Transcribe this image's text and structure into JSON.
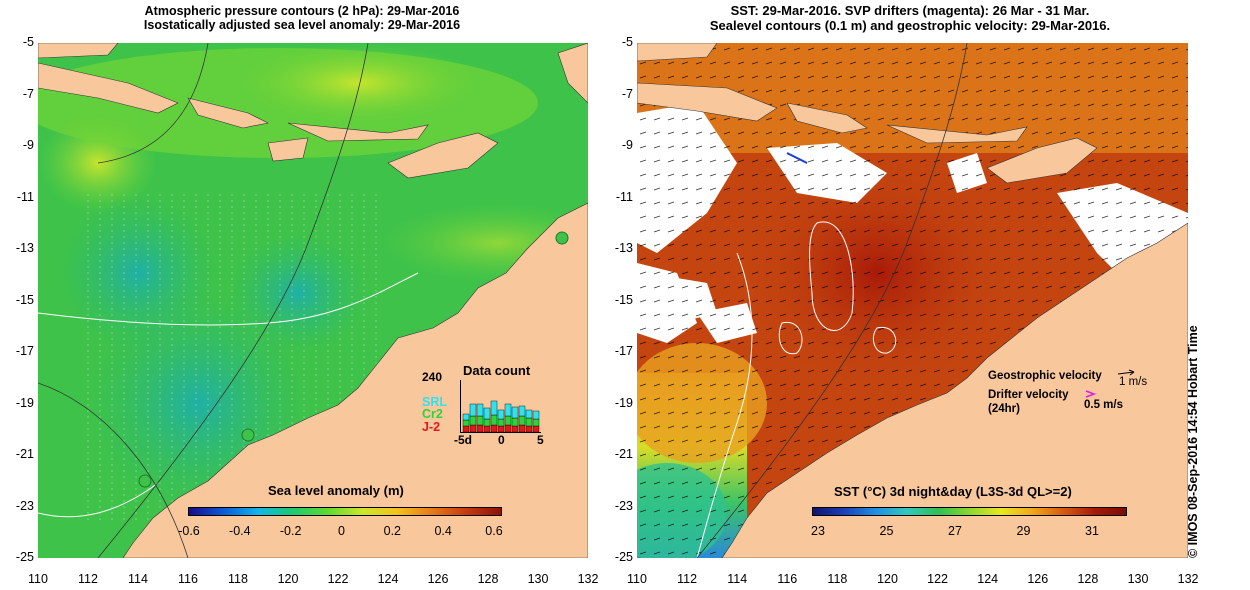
{
  "left_panel": {
    "title_line1": "Atmospheric pressure contours (2 hPa): 29-Mar-2016",
    "title_line2": "Isostatically adjusted sea level anomaly: 29-Mar-2016",
    "colorbar_label": "Sea level anomaly (m)",
    "colorbar_ticks": [
      "-0.6",
      "-0.4",
      "-0.2",
      "0",
      "0.2",
      "0.4",
      "0.6"
    ],
    "colorbar_colors": [
      "#1a0a8c",
      "#0b5bd8",
      "#12b6e8",
      "#1ec96e",
      "#5edb2e",
      "#cbe82a",
      "#f3c21c",
      "#e87a18",
      "#c53a10",
      "#8e1208"
    ],
    "data_count": {
      "title": "Data count",
      "ymax_label": "240",
      "series": [
        {
          "name": "SRL",
          "color": "#33e0ee"
        },
        {
          "name": "Cr2",
          "color": "#2bd43a"
        },
        {
          "name": "J-2",
          "color": "#e01a1a"
        }
      ],
      "xticks": [
        "-5d",
        "0",
        "5"
      ]
    }
  },
  "right_panel": {
    "title_line1": "SST: 29-Mar-2016. SVP drifters (magenta): 26 Mar - 31 Mar.",
    "title_line2": "Sealevel contours (0.1 m) and geostrophic velocity: 29-Mar-2016.",
    "colorbar_label": "SST (°C) 3d night&day (L3S-3d QL>=2)",
    "colorbar_ticks": [
      "23",
      "25",
      "27",
      "29",
      "31"
    ],
    "colorbar_colors": [
      "#14136e",
      "#1c3fb8",
      "#2090e0",
      "#35c7c0",
      "#30c050",
      "#8cd82c",
      "#e8e820",
      "#f0a818",
      "#d85a10",
      "#a81a08",
      "#7a0c06"
    ],
    "legend": {
      "geo_label": "Geostrophic velocity",
      "geo_scale": "1 m/s",
      "drifter_label_1": "Drifter velocity",
      "drifter_label_2": "(24hr)",
      "drifter_scale": "0.5 m/s"
    }
  },
  "axes": {
    "y_labels": [
      "-5",
      "-7",
      "-9",
      "-11",
      "-13",
      "-15",
      "-17",
      "-19",
      "-21",
      "-23",
      "-25"
    ],
    "x_labels": [
      "110",
      "112",
      "114",
      "116",
      "118",
      "120",
      "122",
      "124",
      "126",
      "128",
      "130",
      "132"
    ]
  },
  "credit": "© IMOS 08-Sep-2016 14:54 Hobart Time",
  "colors": {
    "land": "#f9c79c",
    "ocean_green": "#3ec24a",
    "sst_warm": "#c44510",
    "cloud": "#ffffff"
  }
}
